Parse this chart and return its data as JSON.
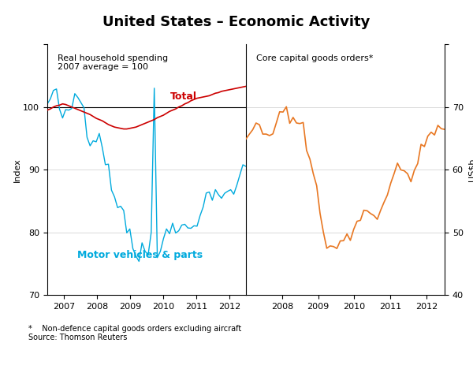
{
  "title": "United States – Economic Activity",
  "left_panel_title": "Real household spending\n2007 average = 100",
  "right_panel_title": "Core capital goods orders*",
  "left_ylabel": "Index",
  "right_ylabel": "US$b",
  "footnote": "*    Non-defence capital goods orders excluding aircraft\nSource: Thomson Reuters",
  "left_ylim": [
    70,
    110
  ],
  "left_yticks": [
    70,
    80,
    90,
    100,
    110
  ],
  "left_ytick_labels": [
    "70",
    "80",
    "90",
    "100",
    ""
  ],
  "right_ylim": [
    40,
    80
  ],
  "right_yticks": [
    40,
    50,
    60,
    70,
    80
  ],
  "right_ytick_labels": [
    "40",
    "50",
    "60",
    "70",
    ""
  ],
  "hline_value": 100,
  "total_color": "#cc0000",
  "motor_color": "#00aadd",
  "core_color": "#e87722",
  "total_label": "Total",
  "motor_label": "Motor vehicles & parts"
}
